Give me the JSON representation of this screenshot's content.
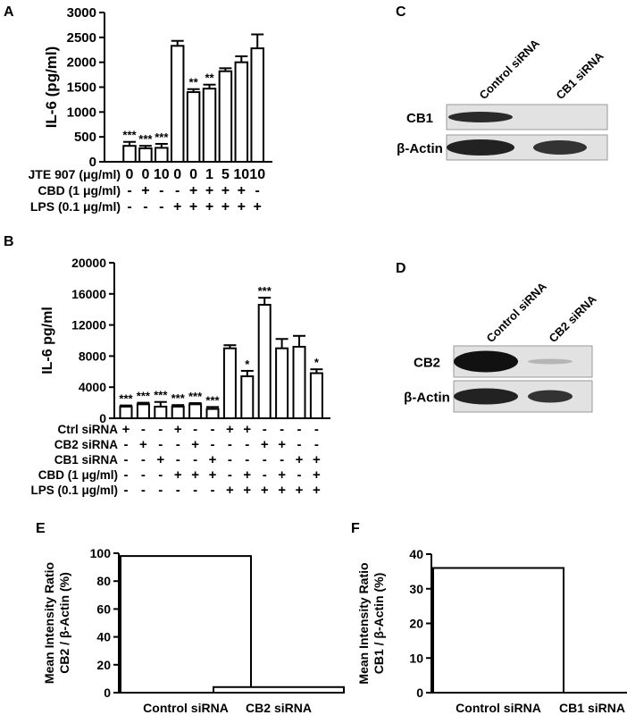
{
  "panel_letters": {
    "A": "A",
    "B": "B",
    "C": "C",
    "D": "D",
    "E": "E",
    "F": "F"
  },
  "chart_data": [
    {
      "id": "A",
      "type": "bar",
      "ylabel": "IL-6 (pg/ml)",
      "ylim": [
        0,
        3000
      ],
      "yticks": [
        "0",
        "500",
        "1000",
        "1500",
        "2000",
        "2500",
        "3000"
      ],
      "values": [
        320,
        270,
        280,
        2330,
        1400,
        1470,
        1820,
        2000,
        2280
      ],
      "errors": [
        80,
        50,
        80,
        100,
        60,
        80,
        60,
        120,
        280
      ],
      "significance": [
        "***",
        "***",
        "***",
        "",
        "**",
        "**",
        "",
        "",
        ""
      ],
      "conditions": [
        {
          "label": "JTE 907 (μg/ml)",
          "values": [
            "0",
            "0",
            "10",
            "0",
            "0",
            "1",
            "5",
            "10",
            "10"
          ]
        },
        {
          "label": "CBD (1 μg/ml)",
          "values": [
            "-",
            "+",
            "-",
            "-",
            "+",
            "+",
            "+",
            "+",
            "-"
          ]
        },
        {
          "label": "LPS (0.1 μg/ml)",
          "values": [
            "-",
            "-",
            "-",
            "+",
            "+",
            "+",
            "+",
            "+",
            "+"
          ]
        }
      ]
    },
    {
      "id": "B",
      "type": "bar",
      "ylabel": "IL-6 pg/ml",
      "ylim": [
        0,
        20000
      ],
      "yticks": [
        "0",
        "4000",
        "8000",
        "12000",
        "16000",
        "20000"
      ],
      "values": [
        1500,
        1800,
        1500,
        1500,
        1800,
        1200,
        9000,
        5400,
        14600,
        9000,
        9200,
        5800
      ],
      "errors": [
        150,
        200,
        600,
        200,
        150,
        250,
        400,
        700,
        900,
        1200,
        1400,
        500
      ],
      "significance": [
        "***",
        "***",
        "***",
        "***",
        "***",
        "***",
        "",
        "*",
        "***",
        "",
        "",
        "*"
      ],
      "conditions": [
        {
          "label": "Ctrl siRNA",
          "values": [
            "+",
            "-",
            "-",
            "+",
            "-",
            "-",
            "+",
            "+",
            "-",
            "-",
            "-",
            "-"
          ]
        },
        {
          "label": "CB2 siRNA",
          "values": [
            "-",
            "+",
            "-",
            "-",
            "+",
            "-",
            "-",
            "-",
            "+",
            "+",
            "-",
            "-"
          ]
        },
        {
          "label": "CB1 siRNA",
          "values": [
            "-",
            "-",
            "+",
            "-",
            "-",
            "+",
            "-",
            "-",
            "-",
            "-",
            "+",
            "+"
          ]
        },
        {
          "label": "CBD (1 μg/ml)",
          "values": [
            "-",
            "-",
            "-",
            "+",
            "+",
            "+",
            "-",
            "+",
            "-",
            "+",
            "-",
            "+"
          ]
        },
        {
          "label": "LPS (0.1 μg/ml)",
          "values": [
            "-",
            "-",
            "-",
            "-",
            "-",
            "-",
            "+",
            "+",
            "+",
            "+",
            "+",
            "+"
          ]
        }
      ]
    },
    {
      "id": "E",
      "type": "bar",
      "ylabel_line1": "Mean Intensity Ratio",
      "ylabel_line2": "CB2 / β-Actin (%)",
      "ylim": [
        0,
        100
      ],
      "yticks": [
        "0",
        "20",
        "40",
        "60",
        "80",
        "100"
      ],
      "categories": [
        "Control siRNA",
        "CB2 siRNA"
      ],
      "values": [
        98,
        4
      ]
    },
    {
      "id": "F",
      "type": "bar",
      "ylabel_line1": "Mean Intensity Ratio",
      "ylabel_line2": "CB1 / β-Actin (%)",
      "ylim": [
        0,
        40
      ],
      "yticks": [
        "0",
        "10",
        "20",
        "30",
        "40"
      ],
      "categories": [
        "Control siRNA",
        "CB1 siRNA"
      ],
      "values": [
        36,
        0
      ]
    }
  ],
  "blots": {
    "C": {
      "lanes": [
        "Control siRNA",
        "CB1 siRNA"
      ],
      "rows": [
        "CB1",
        "β-Actin"
      ]
    },
    "D": {
      "lanes": [
        "Control siRNA",
        "CB2 siRNA"
      ],
      "rows": [
        "CB2",
        "β-Actin"
      ]
    }
  }
}
